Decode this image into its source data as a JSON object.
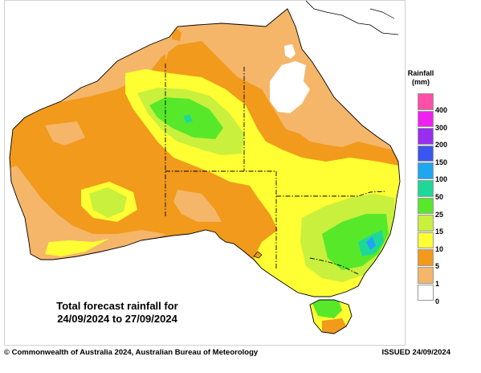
{
  "map": {
    "caption_line1": "Total forecast rainfall for",
    "caption_line2": "24/09/2024 to 27/09/2024",
    "colors": {
      "ocean": "#ffffff",
      "r0": "#ffffff",
      "r1": "#f5b66a",
      "r5": "#f19a1b",
      "r10": "#ffff33",
      "r15": "#c8f03c",
      "r25": "#58e82a",
      "r50": "#1ed898",
      "r100": "#1ea6f0",
      "coast": "#000000",
      "border": "#000000"
    }
  },
  "legend": {
    "title_line1": "Rainfall",
    "title_line2": "(mm)",
    "items": [
      {
        "label": "400",
        "color": "#ff4fa8"
      },
      {
        "label": "300",
        "color": "#ee22ee"
      },
      {
        "label": "200",
        "color": "#9a2ef0"
      },
      {
        "label": "150",
        "color": "#3b56f0"
      },
      {
        "label": "100",
        "color": "#1ea6f0"
      },
      {
        "label": "50",
        "color": "#1ed898"
      },
      {
        "label": "25",
        "color": "#58e82a"
      },
      {
        "label": "15",
        "color": "#c8f03c"
      },
      {
        "label": "10",
        "color": "#ffff33"
      },
      {
        "label": "5",
        "color": "#f19a1b"
      },
      {
        "label": "1",
        "color": "#f5b66a"
      },
      {
        "label": "0",
        "color": "#ffffff"
      }
    ]
  },
  "footer": {
    "copyright": "© Commonwealth of Australia 2024, Australian Bureau of Meteorology",
    "issued": "ISSUED 24/09/2024"
  }
}
